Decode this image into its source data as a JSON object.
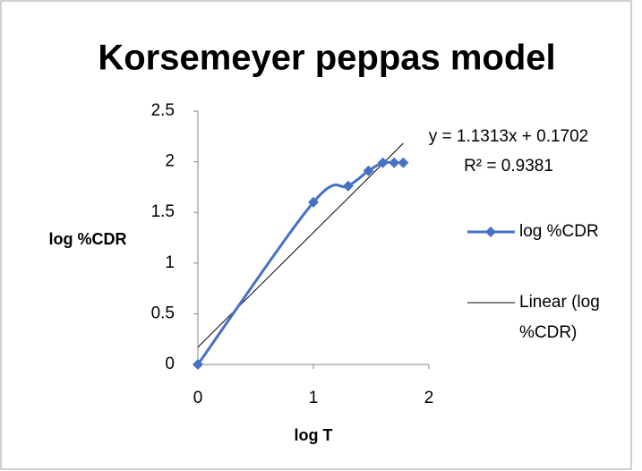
{
  "chart_data": {
    "type": "scatter",
    "title": "Korsemeyer peppas model",
    "x_label": "log T",
    "y_label": "log %CDR",
    "series": [
      {
        "name": "log %CDR",
        "color": "#4472c4",
        "x": [
          0,
          1,
          1.301,
          1.477,
          1.602,
          1.699,
          1.778
        ],
        "values": [
          0,
          1.6,
          1.76,
          1.91,
          1.99,
          1.99,
          1.99
        ]
      }
    ],
    "trendline": {
      "name": "Linear (log %CDR)",
      "slope": 1.1313,
      "intercept": 0.1702,
      "color": "#000000",
      "equation": "y = 1.1313x + 0.1702",
      "r2": "R² = 0.9381"
    },
    "xlim": [
      0,
      2
    ],
    "xticks": [
      0,
      1,
      2
    ],
    "ylim": [
      0,
      2.5
    ],
    "yticks": [
      0,
      {
        "value": 0.5,
        "label": "0.5"
      },
      1,
      {
        "value": 1.5,
        "label": "1.5"
      },
      2,
      {
        "value": 2.5,
        "label": "2.5"
      }
    ],
    "grid": false
  }
}
